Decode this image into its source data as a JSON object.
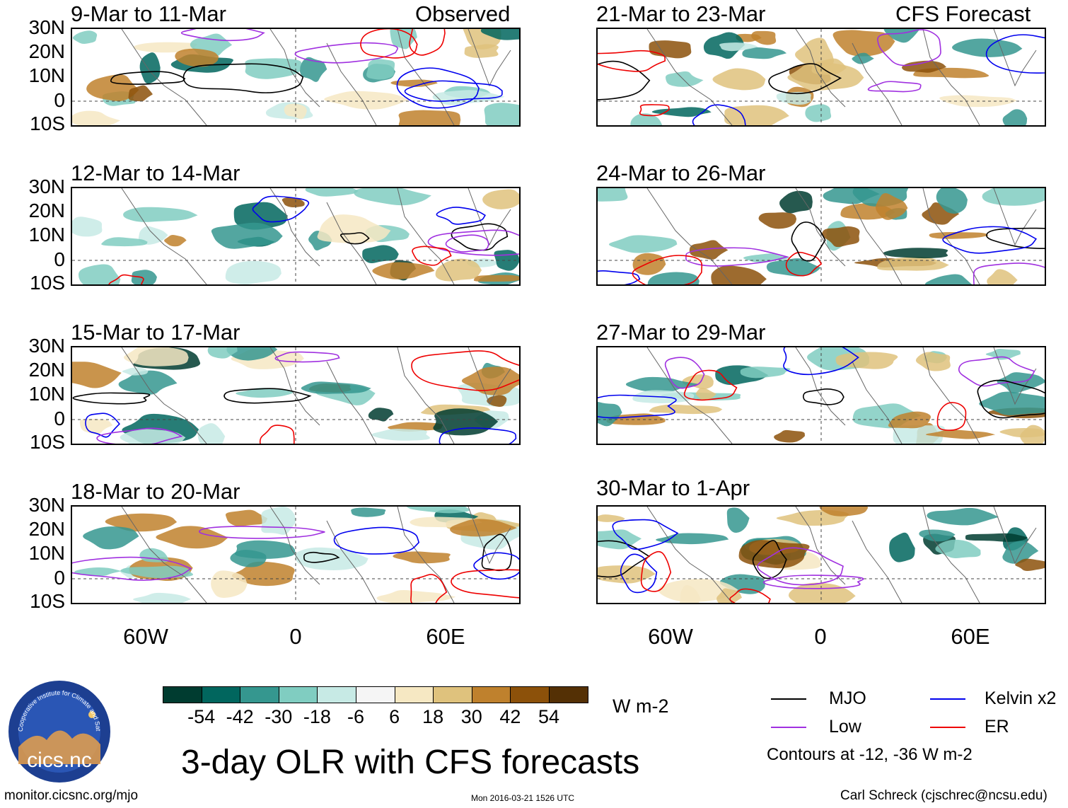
{
  "figure_title": "3-day OLR with CFS forecasts",
  "section_labels": {
    "observed": "Observed",
    "forecast": "CFS Forecast"
  },
  "panels_left": [
    {
      "title": "9-Mar to 11-Mar",
      "kind": "observed"
    },
    {
      "title": "12-Mar to 14-Mar",
      "kind": "observed"
    },
    {
      "title": "15-Mar to 17-Mar",
      "kind": "observed"
    },
    {
      "title": "18-Mar to 20-Mar",
      "kind": "observed"
    }
  ],
  "panels_right": [
    {
      "title": "21-Mar to 23-Mar",
      "kind": "forecast"
    },
    {
      "title": "24-Mar to 26-Mar",
      "kind": "forecast"
    },
    {
      "title": "27-Mar to 29-Mar",
      "kind": "forecast"
    },
    {
      "title": "30-Mar to 1-Apr",
      "kind": "forecast"
    }
  ],
  "lat_labels": [
    "30N",
    "20N",
    "10N",
    "0",
    "10S"
  ],
  "lon_labels": [
    "60W",
    "0",
    "60E"
  ],
  "colorbar": {
    "unit": "W m-2",
    "tick_labels": [
      "-54",
      "-42",
      "-30",
      "-18",
      "-6",
      "6",
      "18",
      "30",
      "42",
      "54"
    ],
    "colors": [
      "#003c30",
      "#01665e",
      "#35978f",
      "#80cdc1",
      "#c7eae5",
      "#f5f5f5",
      "#f6e8c3",
      "#dfc27d",
      "#bf812d",
      "#8c510a",
      "#543005"
    ]
  },
  "legend": {
    "items": [
      {
        "label": "MJO",
        "color": "#000000"
      },
      {
        "label": "Kelvin x2",
        "color": "#0000ee"
      },
      {
        "label": "Low",
        "color": "#a030e0"
      },
      {
        "label": "ER",
        "color": "#ee0000"
      }
    ],
    "note": "Contours at -12, -36 W m-2"
  },
  "logo": {
    "text": "cics.nc",
    "ring_text": "Cooperative Institute for Climate and Satellites"
  },
  "footer": {
    "left": "monitor.cicsnc.org/mjo",
    "center": "Mon 2016-03-21 1526 UTC",
    "right": "Carl Schreck (cjschrec@ncsu.edu)"
  }
}
